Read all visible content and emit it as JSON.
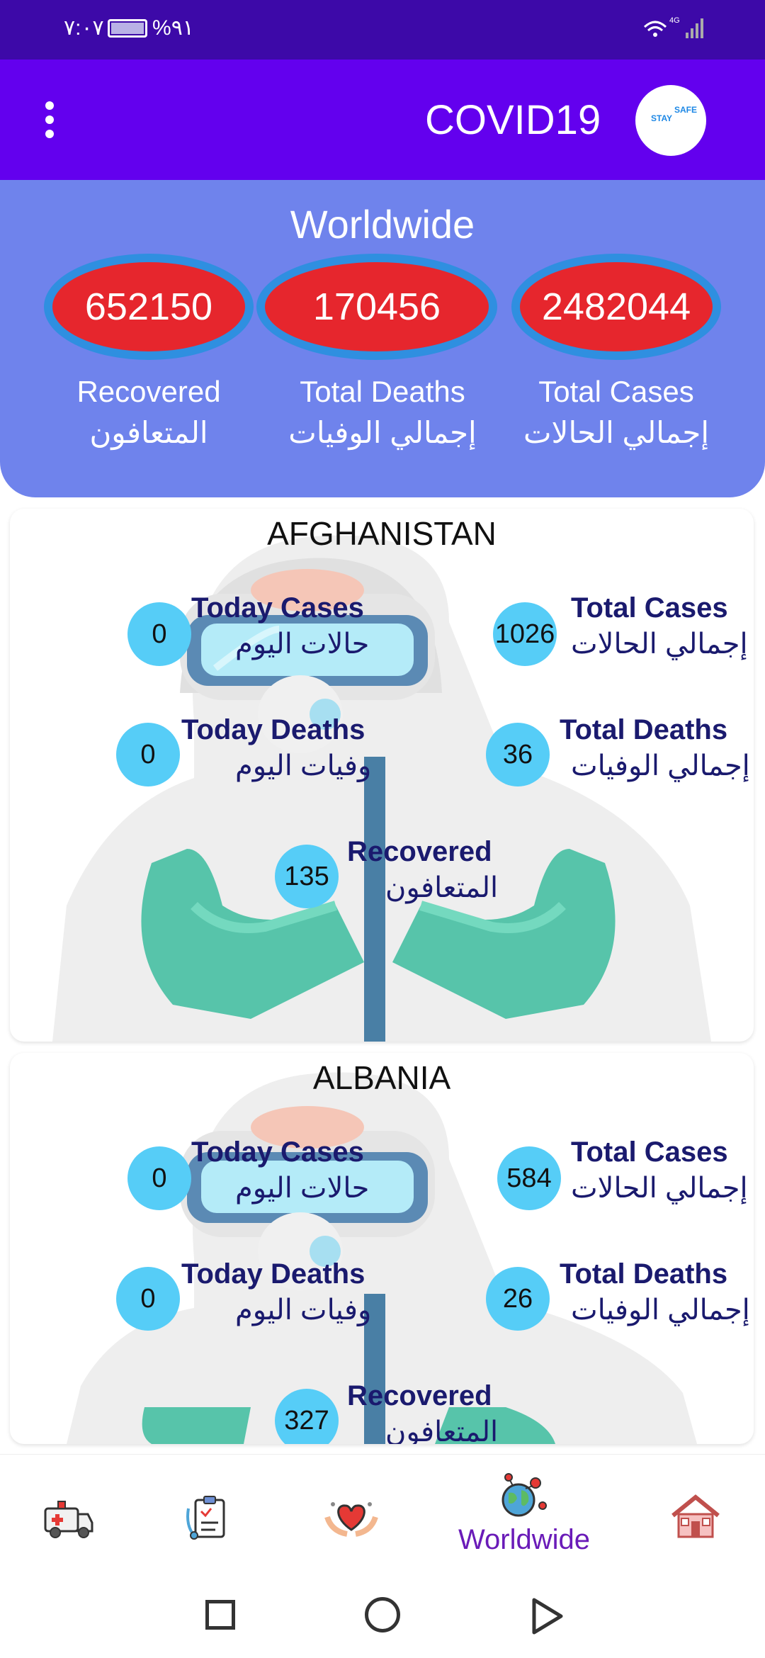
{
  "status_bar": {
    "time": "٧:٠٧",
    "battery": "%٩١",
    "network": "4G"
  },
  "app_bar": {
    "title": "COVID19",
    "logo_text_1": "STAY",
    "logo_text_2": "SAFE"
  },
  "worldwide": {
    "heading": "Worldwide",
    "recovered": {
      "value": "652150",
      "label_en": "Recovered",
      "label_ar": "المتعافون"
    },
    "deaths": {
      "value": "170456",
      "label_en": "Total Deaths",
      "label_ar": "إجمالي الوفيات"
    },
    "cases": {
      "value": "2482044",
      "label_en": "Total Cases",
      "label_ar": "إجمالي الحالات"
    }
  },
  "labels": {
    "today_cases_en": "Today Cases",
    "today_cases_ar": "حالات اليوم",
    "total_cases_en": "Total Cases",
    "total_cases_ar": "إجمالي الحالات",
    "today_deaths_en": "Today Deaths",
    "today_deaths_ar": "وفيات اليوم",
    "total_deaths_en": "Total Deaths",
    "total_deaths_ar": "إجمالي الوفيات",
    "recovered_en": "Recovered",
    "recovered_ar": "المتعافون"
  },
  "countries": [
    {
      "name": "AFGHANISTAN",
      "today_cases": "0",
      "total_cases": "1026",
      "today_deaths": "0",
      "total_deaths": "36",
      "recovered": "135"
    },
    {
      "name": "ALBANIA",
      "today_cases": "0",
      "total_cases": "584",
      "today_deaths": "0",
      "total_deaths": "26",
      "recovered": "327"
    }
  ],
  "bottom_nav": {
    "items": [
      {
        "icon": "ambulance-icon"
      },
      {
        "icon": "clipboard-icon"
      },
      {
        "icon": "heart-hands-icon"
      },
      {
        "icon": "globe-virus-icon",
        "label": "Worldwide"
      },
      {
        "icon": "house-icon"
      }
    ]
  },
  "colors": {
    "status_bar": "#3d09a8",
    "app_bar": "#6300ee",
    "world_panel": "#6f83ec",
    "ellipse": "#e6262d",
    "stat_circle": "#56cdf7",
    "nav_active": "#6a1bb8"
  }
}
